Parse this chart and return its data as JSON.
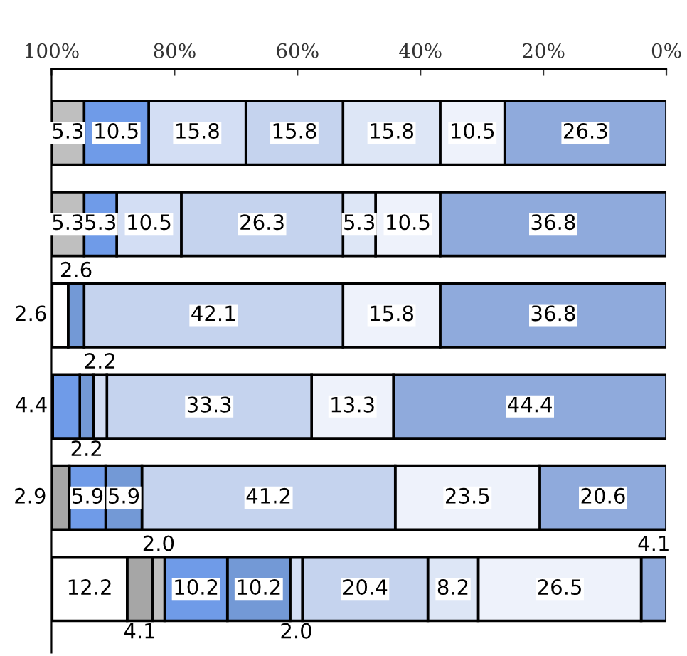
{
  "chart_data": {
    "type": "bar",
    "orientation": "horizontal",
    "stacked": true,
    "grid": false,
    "legend": false,
    "tick_labels": "x",
    "categories": [
      null,
      null,
      null,
      null,
      null,
      null
    ],
    "xlim": [
      100,
      0
    ],
    "xticks": [
      {
        "value": 100,
        "label": "100%"
      },
      {
        "value": 80,
        "label": "80%"
      },
      {
        "value": 60,
        "label": "60%"
      },
      {
        "value": 40,
        "label": "40%"
      },
      {
        "value": 20,
        "label": "20%"
      },
      {
        "value": 0,
        "label": "0%"
      }
    ],
    "series": [
      {
        "color": "#8faadc",
        "values": [
          26.3,
          36.8,
          36.8,
          44.4,
          20.6,
          4.1
        ],
        "value_labels": [
          "26.3",
          "36.8",
          "36.8",
          "44.4",
          "20.6",
          "4.1"
        ]
      },
      {
        "color": "#eef2fb",
        "values": [
          10.5,
          10.5,
          15.8,
          13.3,
          23.5,
          26.5
        ],
        "value_labels": [
          "10.5",
          "10.5",
          "15.8",
          "13.3",
          "23.5",
          "26.5"
        ]
      },
      {
        "color": "#dde6f6",
        "values": [
          15.8,
          5.3,
          null,
          null,
          null,
          8.2
        ],
        "value_labels": [
          "15.8",
          "5.3",
          null,
          null,
          null,
          "8.2"
        ]
      },
      {
        "color": "#c5d3ee",
        "values": [
          15.8,
          26.3,
          42.1,
          33.3,
          41.2,
          20.4
        ],
        "value_labels": [
          "15.8",
          "26.3",
          "42.1",
          "33.3",
          "41.2",
          "20.4"
        ]
      },
      {
        "color": "#d3def4",
        "values": [
          15.8,
          10.5,
          null,
          2.2,
          null,
          2.0
        ],
        "value_labels": [
          "15.8",
          "10.5",
          null,
          "2.2",
          null,
          "2.0"
        ]
      },
      {
        "color": "#7399d6",
        "values": [
          null,
          null,
          2.6,
          2.2,
          5.9,
          10.2
        ],
        "value_labels": [
          null,
          null,
          "2.6",
          "2.2",
          "5.9",
          "10.2"
        ]
      },
      {
        "color": "#6f9be8",
        "values": [
          10.5,
          5.3,
          null,
          4.4,
          5.9,
          10.2
        ],
        "value_labels": [
          "10.5",
          "5.3",
          null,
          "4.4",
          "5.9",
          "10.2"
        ]
      },
      {
        "color": "#bfbfbf",
        "values": [
          5.3,
          5.3,
          null,
          null,
          null,
          2.0
        ],
        "value_labels": [
          "5.3",
          "5.3",
          null,
          null,
          null,
          "2.0"
        ]
      },
      {
        "color": "#a6a6a6",
        "values": [
          null,
          null,
          null,
          null,
          2.9,
          4.1
        ],
        "value_labels": [
          null,
          null,
          null,
          null,
          "2.9",
          "4.1"
        ]
      },
      {
        "color": "#ffffff",
        "values": [
          null,
          null,
          2.6,
          null,
          null,
          12.2
        ],
        "value_labels": [
          null,
          null,
          "2.6",
          null,
          null,
          "12.2"
        ]
      }
    ]
  }
}
